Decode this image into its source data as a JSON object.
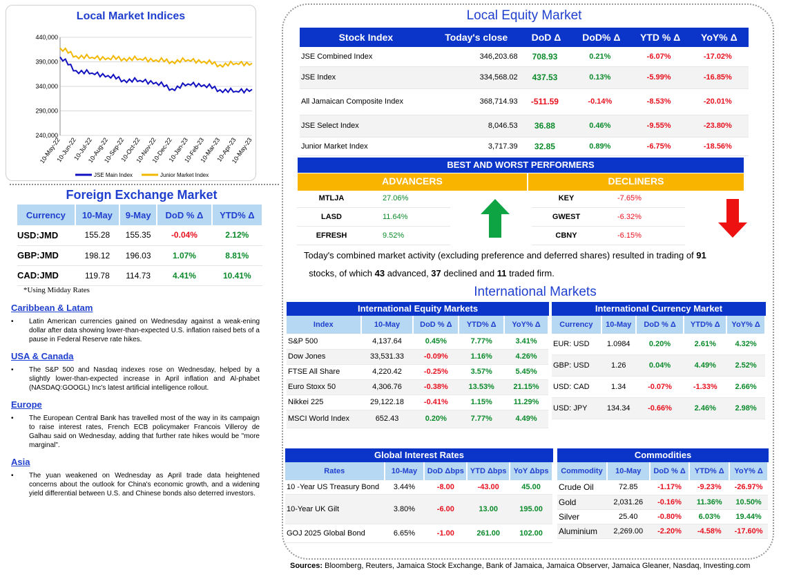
{
  "chart": {
    "title": "Local Market Indices",
    "yticks": [
      "440,000",
      "390,000",
      "340,000",
      "290,000",
      "240,000"
    ],
    "xticks": [
      "10-May-22",
      "10-Jun-22",
      "10-Jul-22",
      "10-Aug-22",
      "10-Sep-22",
      "10-Oct-22",
      "10-Nov-22",
      "10-Dec-22",
      "10-Jan-23",
      "10-Feb-23",
      "10-Mar-23",
      "10-Apr-23",
      "10-May-23"
    ],
    "legend": [
      "JSE Main Index",
      "Junior Market Index"
    ],
    "colors": {
      "jse": "#1010c0",
      "junior": "#f2b800"
    }
  },
  "chart_data": {
    "type": "line",
    "title": "Local Market Indices",
    "ylim": [
      240000,
      440000
    ],
    "x": [
      "10-May-22",
      "10-Jun-22",
      "10-Jul-22",
      "10-Aug-22",
      "10-Sep-22",
      "10-Oct-22",
      "10-Nov-22",
      "10-Dec-22",
      "10-Jan-23",
      "10-Feb-23",
      "10-Mar-23",
      "10-Apr-23",
      "10-May-23"
    ],
    "series": [
      {
        "name": "JSE Main Index",
        "values": [
          400000,
          372000,
          367000,
          362000,
          353000,
          352000,
          348000,
          335000,
          345000,
          343000,
          333000,
          330000,
          334000
        ]
      },
      {
        "name": "Junior Market Index",
        "values": [
          418000,
          402000,
          399000,
          398000,
          397000,
          396000,
          394000,
          391000,
          394000,
          391000,
          384000,
          387000,
          387000
        ]
      }
    ]
  },
  "fx": {
    "title": "Foreign Exchange Market",
    "headers": [
      "Currency",
      "10-May",
      "9-May",
      "DoD % Δ",
      "YTD% Δ"
    ],
    "rows": [
      [
        "USD:JMD",
        "155.28",
        "155.35",
        "-0.04%",
        "2.12%"
      ],
      [
        "GBP:JMD",
        "198.12",
        "196.03",
        "1.07%",
        "8.81%"
      ],
      [
        "CAD:JMD",
        "119.78",
        "114.73",
        "4.41%",
        "10.41%"
      ]
    ],
    "note": "*Using Midday Rates"
  },
  "news": [
    {
      "h": "Caribbean & Latam",
      "t": "Latin American currencies gained on Wednesday against a weak-ening dollar after data showing lower-than-expected U.S. inflation raised bets of a pause in Federal Reserve rate hikes."
    },
    {
      "h": "USA & Canada",
      "t": "The S&P 500 and Nasdaq indexes rose on Wednesday, helped by a slightly lower-than-expected increase in April inflation and Al-phabet (NASDAQ:GOOGL) Inc's latest artificial intelligence rollout."
    },
    {
      "h": "Europe",
      "t": "The European Central Bank has travelled most of the way in its campaign to raise interest rates, French ECB policymaker Francois Villeroy de Galhau said on Wednesday, adding that further rate hikes would be \"more marginal\"."
    },
    {
      "h": "Asia",
      "t": "The yuan weakened on Wednesday as April trade data heightened concerns about the outlook for China's economic growth, and a widening yield differential between U.S. and Chinese bonds also deterred investors."
    }
  ],
  "equity": {
    "title": "Local Equity Market",
    "headers": [
      "Stock Index",
      "Today's close",
      "DoD  Δ",
      "DoD% Δ",
      "YTD % Δ",
      "YoY% Δ"
    ],
    "rows": [
      [
        "JSE Combined Index",
        "346,203.68",
        "708.93",
        "0.21%",
        "-6.07%",
        "-17.02%"
      ],
      [
        "JSE Index",
        "334,568.02",
        "437.53",
        "0.13%",
        "-5.99%",
        "-16.85%"
      ],
      [
        "All Jamaican Composite Index",
        "368,714.93",
        "-511.59",
        "-0.14%",
        "-8.53%",
        "-20.01%"
      ],
      [
        "JSE Select Index",
        "8,046.53",
        "36.88",
        "0.46%",
        "-9.55%",
        "-23.80%"
      ],
      [
        "Junior Market Index",
        "3,717.39",
        "32.85",
        "0.89%",
        "-6.75%",
        "-18.56%"
      ]
    ]
  },
  "performers": {
    "title": "BEST AND WORST PERFORMERS",
    "adv_label": "ADVANCERS",
    "dec_label": "DECLINERS",
    "advancers": [
      [
        "MTLJA",
        "27.06%"
      ],
      [
        "LASD",
        "11.64%"
      ],
      [
        "EFRESH",
        "9.52%"
      ]
    ],
    "decliners": [
      [
        "KEY",
        "-7.65%"
      ],
      [
        "GWEST",
        "-6.32%"
      ],
      [
        "CBNY",
        "-6.15%"
      ]
    ]
  },
  "summary": {
    "p1": "Today's combined market activity (excluding preference and deferred shares) resulted in trading of ",
    "n1": "91",
    "p2": " stocks, of which ",
    "n2": "43",
    "p3": " advanced, ",
    "n3": "37",
    "p4": " declined and ",
    "n4": "11",
    "p5": " traded firm."
  },
  "intl_title": "International Markets",
  "ieq": {
    "title": "International Equity Markets",
    "headers": [
      "Index",
      "10-May",
      "DoD % Δ",
      "YTD% Δ",
      "YoY% Δ"
    ],
    "rows": [
      [
        "S&P 500",
        "4,137.64",
        "0.45%",
        "7.77%",
        "3.41%"
      ],
      [
        "Dow Jones",
        "33,531.33",
        "-0.09%",
        "1.16%",
        "4.26%"
      ],
      [
        "FTSE All Share",
        "4,220.42",
        "-0.25%",
        "3.57%",
        "5.45%"
      ],
      [
        "Euro Stoxx 50",
        "4,306.76",
        "-0.38%",
        "13.53%",
        "21.15%"
      ],
      [
        "Nikkei 225",
        "29,122.18",
        "-0.41%",
        "1.15%",
        "11.29%"
      ],
      [
        "MSCI World Index",
        "652.43",
        "0.20%",
        "7.77%",
        "4.49%"
      ]
    ]
  },
  "icur": {
    "title": "International Currency Market",
    "headers": [
      "Currency",
      "10-May",
      "DoD % Δ",
      "YTD% Δ",
      "YoY% Δ"
    ],
    "rows": [
      [
        "EUR: USD",
        "1.0984",
        "0.20%",
        "2.61%",
        "4.32%"
      ],
      [
        "GBP: USD",
        "1.26",
        "0.04%",
        "4.49%",
        "2.52%"
      ],
      [
        "USD: CAD",
        "1.34",
        "-0.07%",
        "-1.33%",
        "2.66%"
      ],
      [
        "USD: JPY",
        "134.34",
        "-0.66%",
        "2.46%",
        "2.98%"
      ]
    ]
  },
  "rates": {
    "title": "Global Interest Rates",
    "headers": [
      "Rates",
      "10-May",
      "DoD Δbps",
      "YTD Δbps",
      "YoY Δbps"
    ],
    "rows": [
      [
        "10 -Year US Treasury Bond",
        "3.44%",
        "-8.00",
        "-43.00",
        "45.00"
      ],
      [
        "10-Year UK Gilt",
        "3.80%",
        "-6.00",
        "13.00",
        "195.00"
      ],
      [
        "GOJ 2025 Global Bond",
        "6.65%",
        "-1.00",
        "261.00",
        "102.00"
      ]
    ]
  },
  "comm": {
    "title": "Commodities",
    "headers": [
      "Commodity",
      "10-May",
      "DoD % Δ",
      "YTD% Δ",
      "YoY% Δ"
    ],
    "rows": [
      [
        "Crude Oil",
        "72.85",
        "-1.17%",
        "-9.23%",
        "-26.97%"
      ],
      [
        "Gold",
        "2,031.26",
        "-0.16%",
        "11.36%",
        "10.50%"
      ],
      [
        "Silver",
        "25.40",
        "-0.80%",
        "6.03%",
        "19.44%"
      ],
      [
        "Aluminium",
        "2,269.00",
        "-2.20%",
        "-4.58%",
        "-17.60%"
      ]
    ]
  },
  "sources": {
    "label": "Sources:",
    "text": " Bloomberg, Reuters, Jamaica Stock Exchange, Bank of Jamaica, Jamaica Observer, Jamaica Gleaner, Nasdaq, Investing.com"
  }
}
